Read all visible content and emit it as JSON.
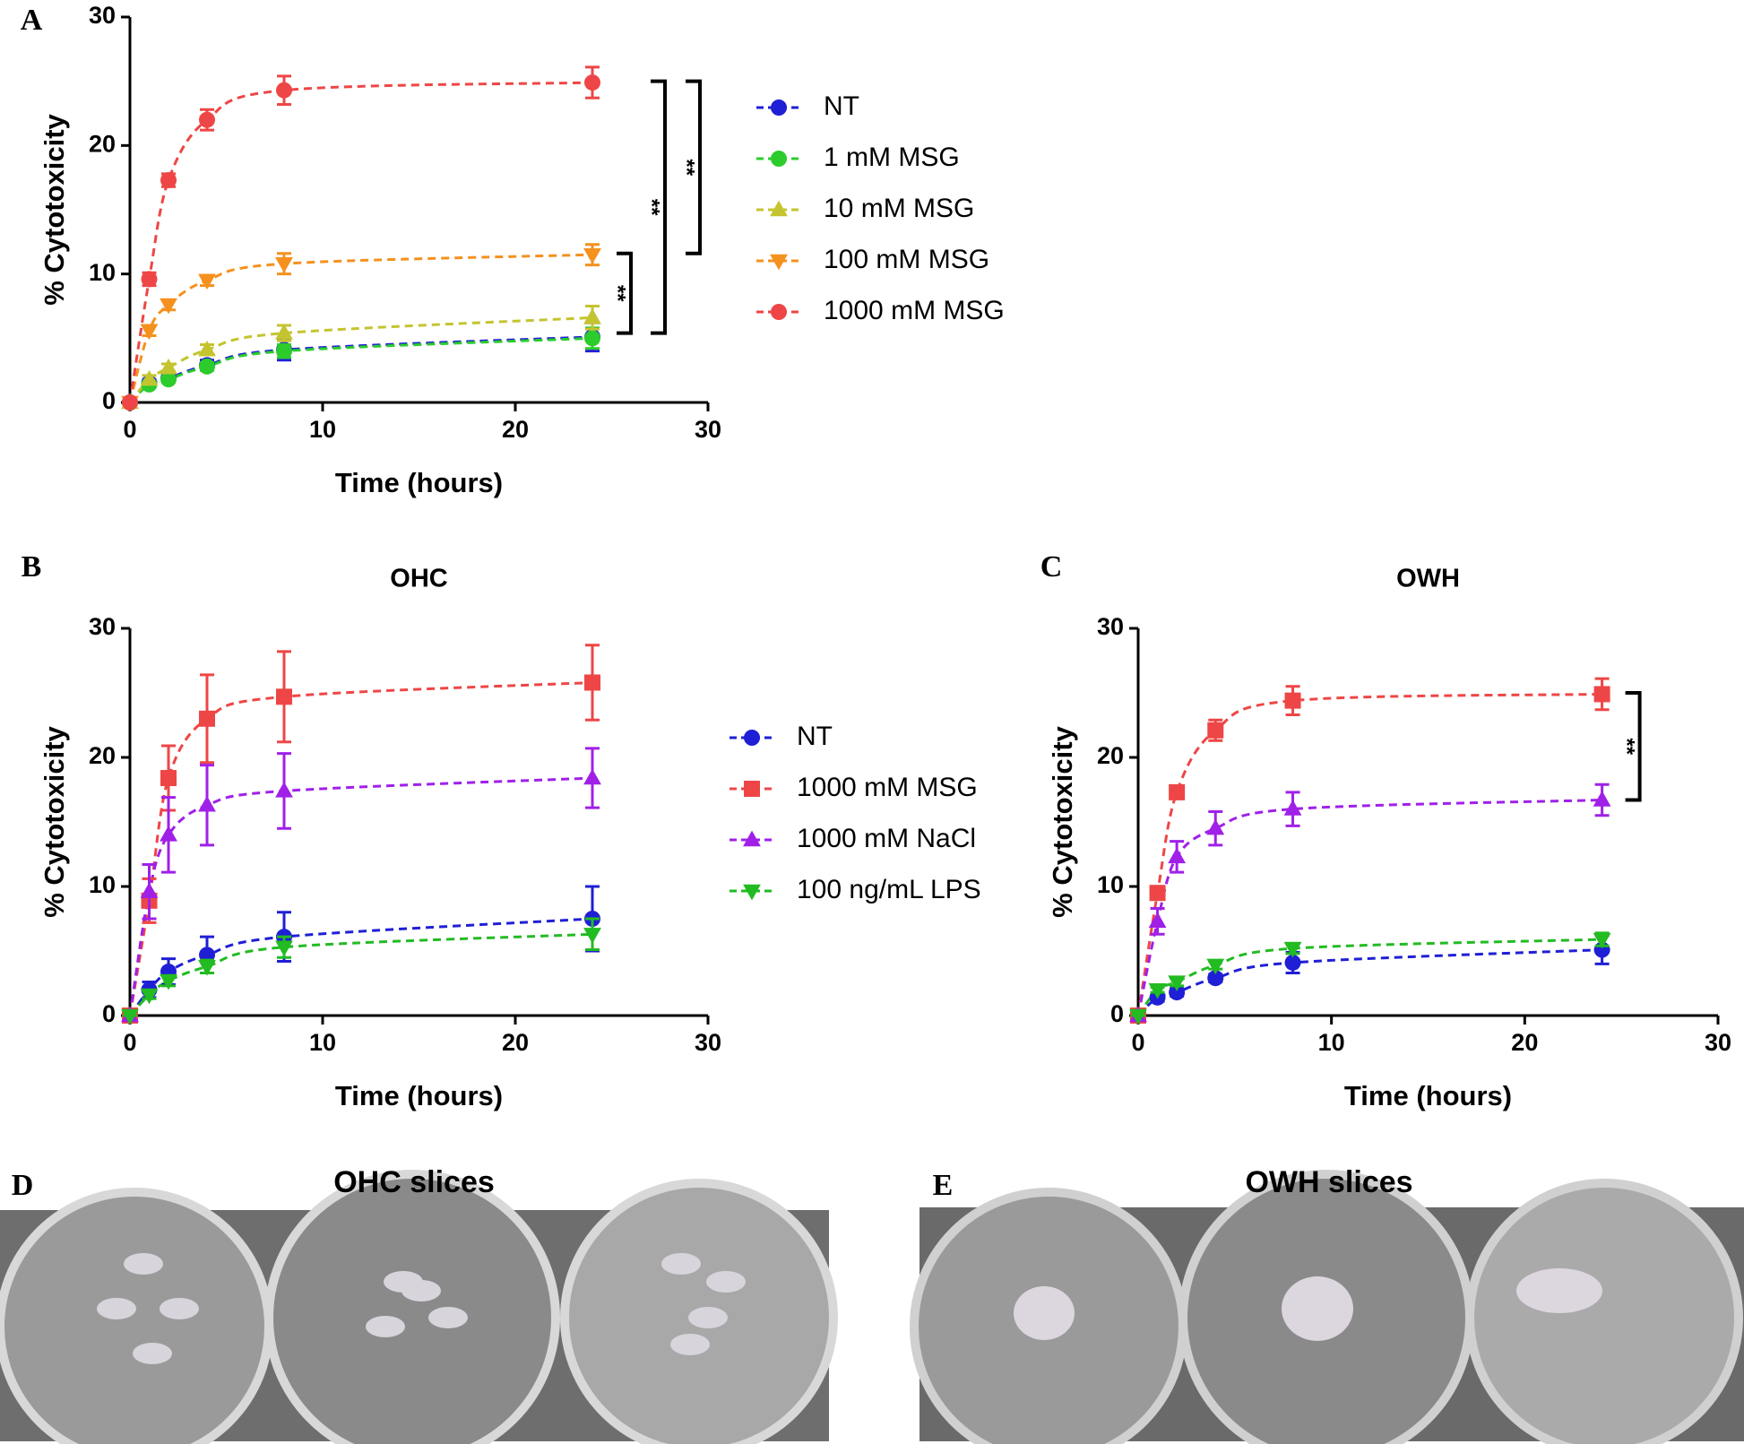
{
  "chart_data": [
    {
      "type": "line",
      "panel": "A",
      "xlabel": "Time (hours)",
      "ylabel": "% Cytotoxicity",
      "x": [
        0,
        1,
        2,
        4,
        8,
        24
      ],
      "xlim": [
        0,
        30
      ],
      "xticks": [
        0,
        10,
        20,
        30
      ],
      "ylim": [
        0,
        30
      ],
      "yticks": [
        0,
        10,
        20,
        30
      ],
      "legend": "right",
      "series": [
        {
          "name": "NT",
          "color": "#1f1fd6",
          "marker": "circle",
          "values": [
            0,
            1.5,
            1.9,
            2.9,
            4.1,
            5.1
          ],
          "errors": [
            0,
            0.3,
            0.3,
            0.4,
            0.8,
            1.1
          ]
        },
        {
          "name": "1 mM MSG",
          "color": "#2ccc2c",
          "marker": "circle",
          "values": [
            0,
            1.4,
            1.8,
            2.8,
            4.0,
            5.0
          ],
          "errors": [
            0,
            0.2,
            0.2,
            0.3,
            0.5,
            0.8
          ]
        },
        {
          "name": "10 mM MSG",
          "color": "#c4c430",
          "marker": "triangle-up",
          "values": [
            0,
            1.8,
            2.7,
            4.1,
            5.4,
            6.6
          ],
          "errors": [
            0,
            0.3,
            0.3,
            0.4,
            0.6,
            0.9
          ]
        },
        {
          "name": "100 mM MSG",
          "color": "#f5911e",
          "marker": "triangle-down",
          "values": [
            0,
            5.6,
            7.6,
            9.5,
            10.8,
            11.5
          ],
          "errors": [
            0,
            0.4,
            0.4,
            0.4,
            0.8,
            0.8
          ]
        },
        {
          "name": "1000 mM MSG",
          "color": "#ee4646",
          "marker": "circle",
          "values": [
            0,
            9.6,
            17.3,
            22.0,
            24.3,
            24.9
          ],
          "errors": [
            0,
            0.5,
            0.5,
            0.8,
            1.1,
            1.2
          ]
        }
      ],
      "brackets": [
        {
          "label": "**",
          "from": 11.6,
          "to": 5.4
        },
        {
          "label": "**",
          "from": 25,
          "to": 5.4
        },
        {
          "label": "**",
          "from": 25,
          "to": 11.6
        }
      ]
    },
    {
      "type": "line",
      "panel": "B",
      "title": "OHC",
      "xlabel": "Time (hours)",
      "ylabel": "% Cytotoxicity",
      "x": [
        0,
        1,
        2,
        4,
        8,
        24
      ],
      "xlim": [
        0,
        30
      ],
      "xticks": [
        0,
        10,
        20,
        30
      ],
      "ylim": [
        0,
        30
      ],
      "yticks": [
        0,
        10,
        20,
        30
      ],
      "legend": "right",
      "series": [
        {
          "name": "NT",
          "color": "#1f1fd6",
          "marker": "circle",
          "values": [
            0,
            2.0,
            3.4,
            4.7,
            6.1,
            7.5
          ],
          "errors": [
            0,
            0.6,
            1.0,
            1.4,
            1.9,
            2.5
          ]
        },
        {
          "name": "1000 mM MSG",
          "color": "#ee4646",
          "marker": "square",
          "values": [
            0,
            8.9,
            18.4,
            23.0,
            24.7,
            25.8
          ],
          "errors": [
            0,
            1.7,
            2.5,
            3.4,
            3.5,
            2.9
          ]
        },
        {
          "name": "1000 mM NaCl",
          "color": "#a020e8",
          "marker": "triangle-up",
          "values": [
            0,
            9.6,
            14.0,
            16.3,
            17.4,
            18.4
          ],
          "errors": [
            0,
            2.1,
            2.9,
            3.1,
            2.9,
            2.3
          ]
        },
        {
          "name": "100 ng/mL LPS",
          "color": "#22bb22",
          "marker": "triangle-down",
          "values": [
            0,
            1.6,
            2.7,
            3.8,
            5.3,
            6.3
          ],
          "errors": [
            0,
            0.3,
            0.4,
            0.5,
            0.8,
            1.2
          ]
        }
      ]
    },
    {
      "type": "line",
      "panel": "C",
      "title": "OWH",
      "xlabel": "Time (hours)",
      "ylabel": "% Cytotoxicity",
      "x": [
        0,
        1,
        2,
        4,
        8,
        24
      ],
      "xlim": [
        0,
        30
      ],
      "xticks": [
        0,
        10,
        20,
        30
      ],
      "ylim": [
        0,
        30
      ],
      "yticks": [
        0,
        10,
        20,
        30
      ],
      "series": [
        {
          "name": "NT",
          "color": "#1f1fd6",
          "marker": "circle",
          "values": [
            0,
            1.4,
            1.8,
            2.9,
            4.1,
            5.1
          ],
          "errors": [
            0,
            0.3,
            0.3,
            0.3,
            0.8,
            1.1
          ]
        },
        {
          "name": "1000 mM MSG",
          "color": "#ee4646",
          "marker": "square",
          "values": [
            0,
            9.5,
            17.3,
            22.1,
            24.4,
            24.9
          ],
          "errors": [
            0,
            0.5,
            0.5,
            0.8,
            1.1,
            1.2
          ]
        },
        {
          "name": "1000 mM NaCl",
          "color": "#a020e8",
          "marker": "triangle-up",
          "values": [
            0,
            7.3,
            12.3,
            14.5,
            16.0,
            16.7
          ],
          "errors": [
            0,
            1.0,
            1.2,
            1.3,
            1.3,
            1.2
          ]
        },
        {
          "name": "100 ng/mL LPS",
          "color": "#22bb22",
          "marker": "triangle-down",
          "values": [
            0,
            2.0,
            2.6,
            3.9,
            5.2,
            5.9
          ],
          "errors": [
            0,
            0.2,
            0.3,
            0.3,
            0.4,
            0.5
          ]
        }
      ],
      "brackets": [
        {
          "label": "**",
          "from": 25,
          "to": 16.7
        }
      ]
    }
  ],
  "photos": [
    {
      "panel": "D",
      "title": "OHC slices"
    },
    {
      "panel": "E",
      "title": "OWH slices"
    }
  ]
}
